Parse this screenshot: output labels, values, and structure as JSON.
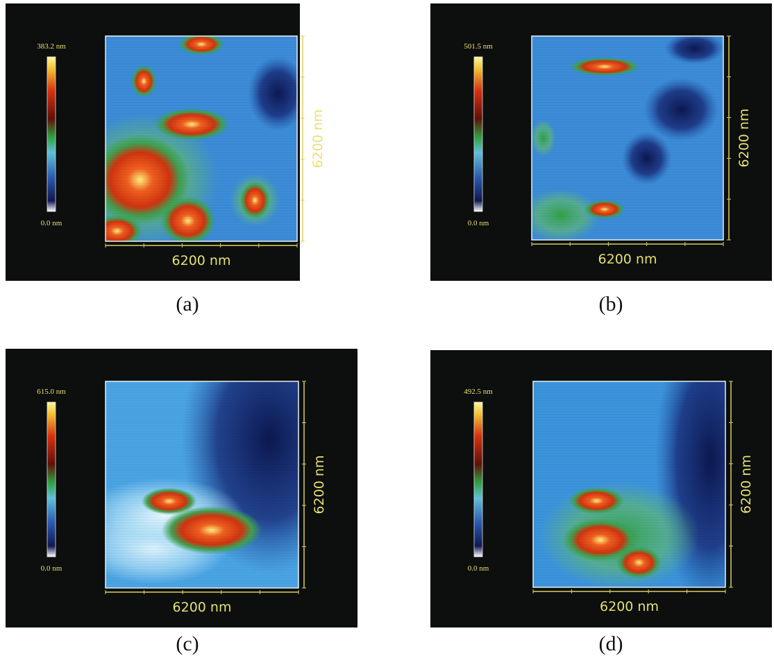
{
  "panels": [
    {
      "caption": "(a)",
      "scale_max": "383.2 nm",
      "scale_min": "0.0 nm",
      "x_axis_label": "6200 nm",
      "y_axis_label": "6200 nm"
    },
    {
      "caption": "(b)",
      "scale_max": "501.5 nm",
      "scale_min": "0.0 nm",
      "x_axis_label": "6200 nm",
      "y_axis_label": "6200 nm"
    },
    {
      "caption": "(c)",
      "scale_max": "615.0 nm",
      "scale_min": "0.0 nm",
      "x_axis_label": "6200 nm",
      "y_axis_label": "6200 nm"
    },
    {
      "caption": "(d)",
      "scale_max": "492.5 nm",
      "scale_min": "0.0 nm",
      "x_axis_label": "6200 nm",
      "y_axis_label": "6200 nm"
    }
  ]
}
